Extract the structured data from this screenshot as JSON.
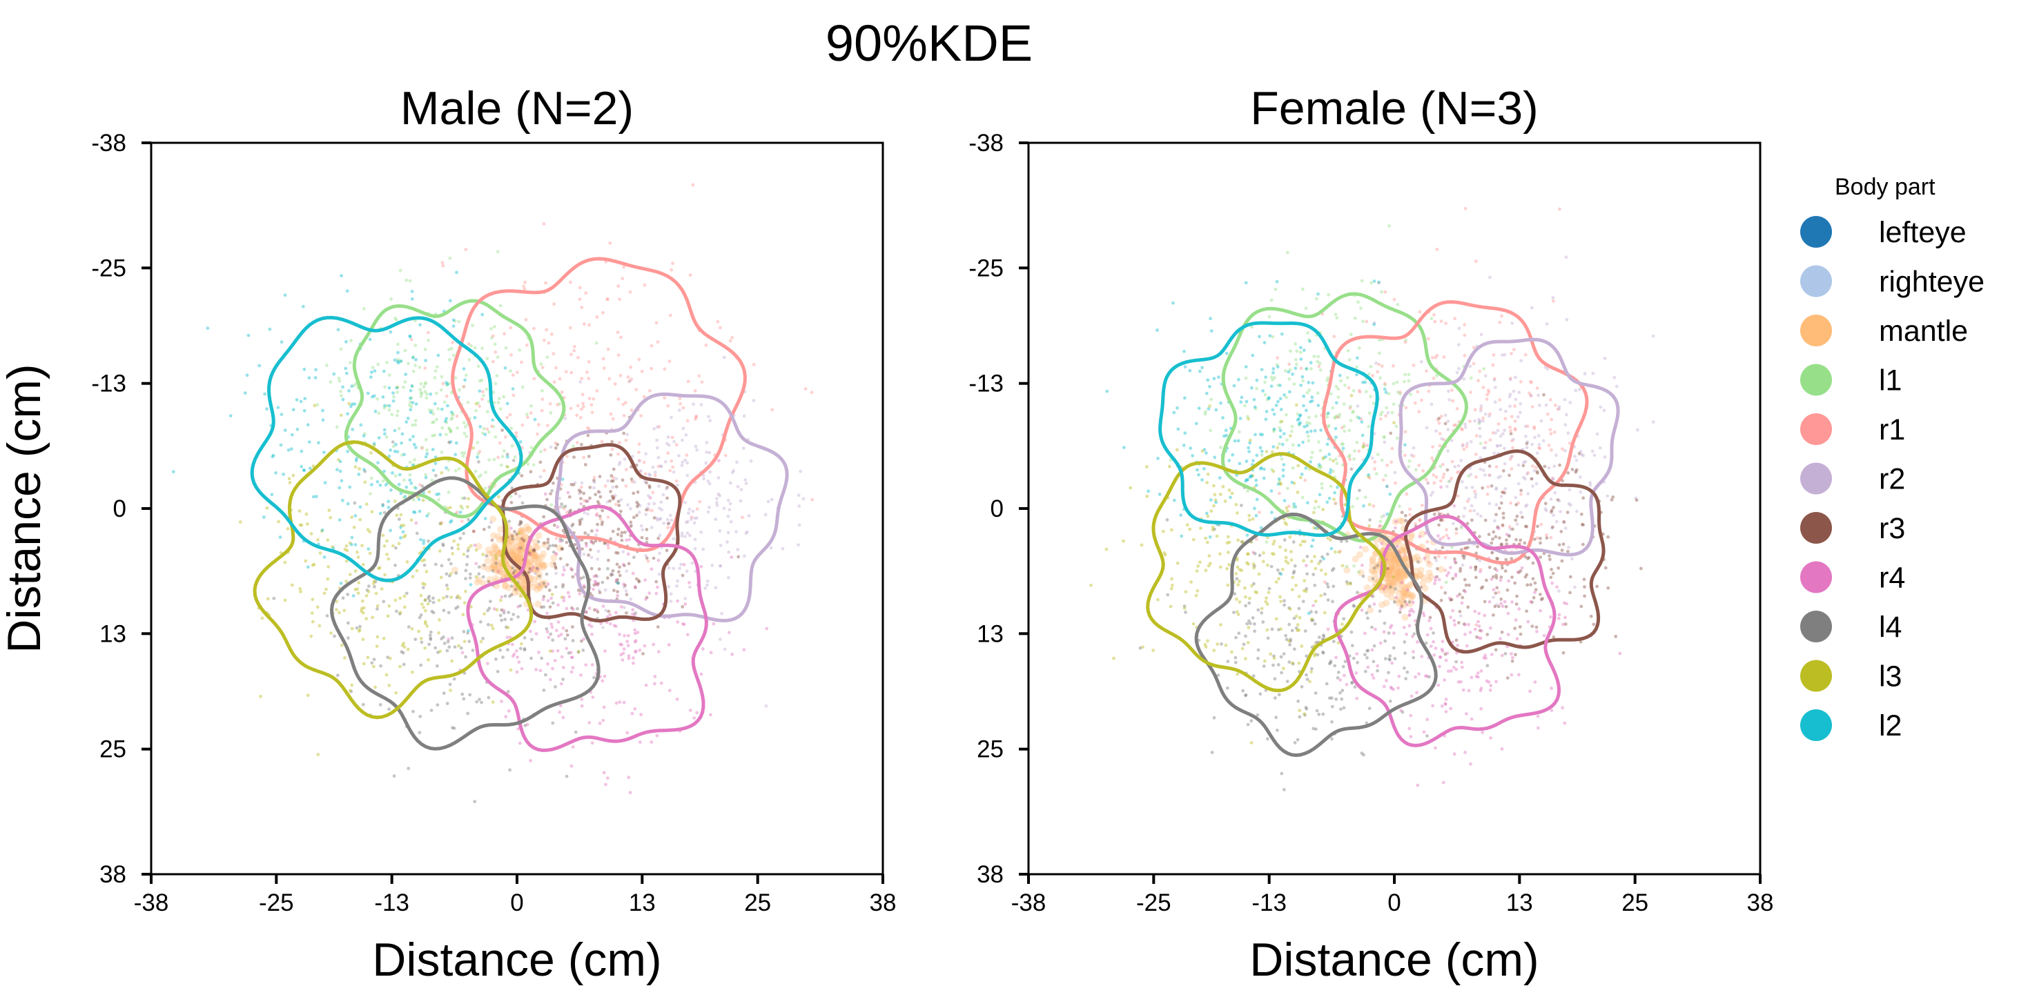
{
  "chart_data": {
    "type": "scatter",
    "suptitle": "90%KDE",
    "legend": {
      "title": "Body part",
      "placement": "right",
      "entries": [
        {
          "name": "lefteye",
          "color": "#1f77b4"
        },
        {
          "name": "righteye",
          "color": "#aec7e8"
        },
        {
          "name": "mantle",
          "color": "#ffbb78"
        },
        {
          "name": "l1",
          "color": "#98df8a"
        },
        {
          "name": "r1",
          "color": "#ff9896"
        },
        {
          "name": "r2",
          "color": "#c5b0d5"
        },
        {
          "name": "r3",
          "color": "#8c564b"
        },
        {
          "name": "r4",
          "color": "#e377c2"
        },
        {
          "name": "l4",
          "color": "#7f7f7f"
        },
        {
          "name": "l3",
          "color": "#bcbd22"
        },
        {
          "name": "l2",
          "color": "#17becf"
        }
      ]
    },
    "axes_common": {
      "xlabel": "Distance (cm)",
      "ylabel": "Distance (cm)",
      "xlim": [
        -38,
        38
      ],
      "ylim": [
        38,
        -38
      ],
      "y_inverted": true,
      "ticks": [
        -38,
        -25,
        -13,
        0,
        13,
        25,
        38
      ],
      "grid": false
    },
    "panels": [
      {
        "title": "Male (N=2)",
        "show_ylabel": true,
        "series": [
          {
            "name": "mantle",
            "center": [
              0,
              5.5
            ],
            "radius": 3.0,
            "wobble": 0.05,
            "phase": 0.0
          },
          {
            "name": "l1",
            "center": [
              -7,
              -11
            ],
            "radius": 10.5,
            "wobble": 0.08,
            "phase": 0.7
          },
          {
            "name": "r1",
            "center": [
              8,
              -11
            ],
            "radius": 14.5,
            "wobble": 0.07,
            "phase": 1.9
          },
          {
            "name": "r2",
            "center": [
              16,
              0
            ],
            "radius": 11.5,
            "wobble": 0.08,
            "phase": 2.6
          },
          {
            "name": "r3",
            "center": [
              8,
              3
            ],
            "radius": 9.0,
            "wobble": 0.09,
            "phase": 3.3
          },
          {
            "name": "r4",
            "center": [
              8,
              13
            ],
            "radius": 12.0,
            "wobble": 0.09,
            "phase": 4.1
          },
          {
            "name": "l4",
            "center": [
              -5,
              11
            ],
            "radius": 13.0,
            "wobble": 0.08,
            "phase": 5.0
          },
          {
            "name": "l3",
            "center": [
              -13,
              7
            ],
            "radius": 13.0,
            "wobble": 0.09,
            "phase": 5.8
          },
          {
            "name": "l2",
            "center": [
              -14,
              -7
            ],
            "radius": 13.0,
            "wobble": 0.07,
            "phase": 0.3
          }
        ]
      },
      {
        "title": "Female (N=3)",
        "show_ylabel": false,
        "series": [
          {
            "name": "mantle",
            "center": [
              0,
              6
            ],
            "radius": 3.0,
            "wobble": 0.05,
            "phase": 0.4
          },
          {
            "name": "l1",
            "center": [
              -6,
              -10
            ],
            "radius": 12.0,
            "wobble": 0.08,
            "phase": 1.2
          },
          {
            "name": "r1",
            "center": [
              6,
              -8
            ],
            "radius": 13.0,
            "wobble": 0.08,
            "phase": 2.2
          },
          {
            "name": "r2",
            "center": [
              12,
              -6
            ],
            "radius": 11.0,
            "wobble": 0.09,
            "phase": 3.0
          },
          {
            "name": "r3",
            "center": [
              12,
              5
            ],
            "radius": 10.0,
            "wobble": 0.09,
            "phase": 3.9
          },
          {
            "name": "r4",
            "center": [
              6,
              13
            ],
            "radius": 11.0,
            "wobble": 0.09,
            "phase": 4.6
          },
          {
            "name": "l4",
            "center": [
              -8,
              13
            ],
            "radius": 11.5,
            "wobble": 0.08,
            "phase": 5.4
          },
          {
            "name": "l3",
            "center": [
              -14,
              6
            ],
            "radius": 11.5,
            "wobble": 0.08,
            "phase": 0.9
          },
          {
            "name": "l2",
            "center": [
              -13,
              -8
            ],
            "radius": 11.0,
            "wobble": 0.07,
            "phase": 2.8
          }
        ]
      }
    ]
  }
}
